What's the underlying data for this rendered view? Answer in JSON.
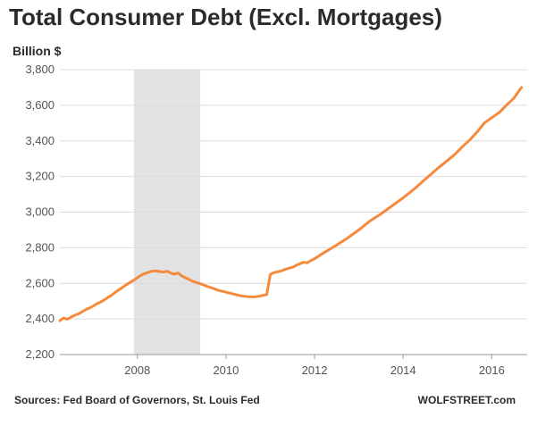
{
  "chart_data": {
    "type": "line",
    "title": "Total Consumer Debt (Excl. Mortgages)",
    "ylabel": "Billion $",
    "xlabel": "",
    "xlim": [
      2006.25,
      2016.8
    ],
    "ylim": [
      2200,
      3800
    ],
    "x_ticks": [
      2008,
      2010,
      2012,
      2014,
      2016
    ],
    "x_tick_labels": [
      "2008",
      "2010",
      "2012",
      "2014",
      "2016"
    ],
    "y_ticks": [
      2200,
      2400,
      2600,
      2800,
      3000,
      3200,
      3400,
      3600,
      3800
    ],
    "y_tick_labels": [
      "2,200",
      "2,400",
      "2,600",
      "2,800",
      "3,000",
      "3,200",
      "3,400",
      "3,600",
      "3,800"
    ],
    "grid": "horizontal",
    "recession_shading": [
      2007.92,
      2009.42
    ],
    "series": [
      {
        "color": "#f58a3d",
        "x": [
          2006.25,
          2006.33,
          2006.42,
          2006.5,
          2006.58,
          2006.67,
          2006.75,
          2006.83,
          2006.92,
          2007.0,
          2007.08,
          2007.17,
          2007.25,
          2007.33,
          2007.42,
          2007.5,
          2007.58,
          2007.67,
          2007.75,
          2007.83,
          2007.92,
          2008.0,
          2008.08,
          2008.17,
          2008.25,
          2008.33,
          2008.42,
          2008.5,
          2008.58,
          2008.67,
          2008.75,
          2008.83,
          2008.92,
          2009.0,
          2009.08,
          2009.17,
          2009.25,
          2009.33,
          2009.42,
          2009.5,
          2009.58,
          2009.67,
          2009.75,
          2009.83,
          2009.92,
          2010.0,
          2010.08,
          2010.17,
          2010.25,
          2010.33,
          2010.42,
          2010.5,
          2010.58,
          2010.67,
          2010.75,
          2010.83,
          2010.92,
          2011.0,
          2011.08,
          2011.17,
          2011.25,
          2011.33,
          2011.42,
          2011.5,
          2011.58,
          2011.67,
          2011.75,
          2011.83,
          2011.92,
          2012.0,
          2012.25,
          2012.5,
          2012.75,
          2013.0,
          2013.25,
          2013.5,
          2013.75,
          2014.0,
          2014.25,
          2014.5,
          2014.75,
          2015.0,
          2015.17,
          2015.33,
          2015.5,
          2015.67,
          2015.83,
          2016.0,
          2016.17,
          2016.33,
          2016.5,
          2016.67
        ],
        "values": [
          2390,
          2405,
          2398,
          2410,
          2420,
          2428,
          2440,
          2452,
          2462,
          2472,
          2485,
          2495,
          2507,
          2520,
          2533,
          2550,
          2563,
          2578,
          2592,
          2605,
          2618,
          2632,
          2645,
          2655,
          2662,
          2668,
          2670,
          2666,
          2663,
          2668,
          2658,
          2652,
          2658,
          2642,
          2632,
          2622,
          2612,
          2605,
          2598,
          2590,
          2582,
          2575,
          2568,
          2560,
          2555,
          2550,
          2545,
          2540,
          2535,
          2530,
          2527,
          2525,
          2524,
          2525,
          2528,
          2532,
          2537,
          2650,
          2660,
          2665,
          2670,
          2678,
          2685,
          2690,
          2700,
          2710,
          2718,
          2715,
          2728,
          2738,
          2778,
          2815,
          2855,
          2900,
          2950,
          2990,
          3035,
          3080,
          3130,
          3185,
          3240,
          3290,
          3325,
          3365,
          3405,
          3450,
          3500,
          3530,
          3560,
          3600,
          3640,
          3700
        ]
      }
    ]
  },
  "footer": {
    "source": "Sources: Fed Board of Governors, St. Louis Fed",
    "brand": "WOLFSTREET.com"
  }
}
